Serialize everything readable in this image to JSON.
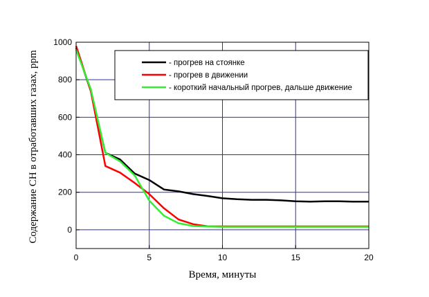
{
  "chart_data": {
    "type": "line",
    "title": "",
    "xlabel": "Время, минуты",
    "ylabel": "Содержание CH в отработавших газах, ppm",
    "xlim": [
      0,
      20
    ],
    "ylim": [
      -100,
      1000
    ],
    "xticks": [
      0,
      5,
      10,
      15,
      20
    ],
    "yticks": [
      0,
      200,
      400,
      600,
      800,
      1000
    ],
    "xtick_labels": [
      "0",
      "5",
      "10",
      "15",
      "20"
    ],
    "ytick_labels": [
      "0",
      "200",
      "400",
      "600",
      "800",
      "1000"
    ],
    "grid": true,
    "legend_position": "top-right",
    "series": [
      {
        "name": "- прогрев на стоянке",
        "color": "#000000",
        "x": [
          0,
          1,
          2,
          3,
          4,
          5,
          6,
          7,
          8,
          9,
          10,
          11,
          12,
          13,
          14,
          15,
          16,
          17,
          18,
          19,
          20
        ],
        "y": [
          970,
          740,
          410,
          375,
          300,
          265,
          215,
          205,
          190,
          180,
          168,
          163,
          160,
          160,
          157,
          152,
          150,
          152,
          152,
          150,
          150
        ]
      },
      {
        "name": "- прогрев в движении",
        "color": "#ff0000",
        "x": [
          0,
          1,
          2,
          3,
          4,
          5,
          6,
          7,
          8,
          9,
          10,
          11,
          12,
          13,
          14,
          15,
          16,
          17,
          18,
          19,
          20
        ],
        "y": [
          980,
          740,
          340,
          305,
          250,
          190,
          115,
          55,
          30,
          18,
          18,
          18,
          18,
          18,
          18,
          18,
          18,
          18,
          18,
          18,
          18
        ]
      },
      {
        "name": "- короткий начальный прогрев, дальше движение",
        "color": "#33ee33",
        "x": [
          0,
          1,
          2,
          3,
          4,
          5,
          6,
          7,
          8,
          9,
          10,
          11,
          12,
          13,
          14,
          15,
          16,
          17,
          18,
          19,
          20
        ],
        "y": [
          960,
          750,
          410,
          365,
          290,
          155,
          75,
          35,
          20,
          17,
          16,
          16,
          16,
          16,
          16,
          16,
          16,
          16,
          16,
          16,
          16
        ]
      }
    ]
  }
}
